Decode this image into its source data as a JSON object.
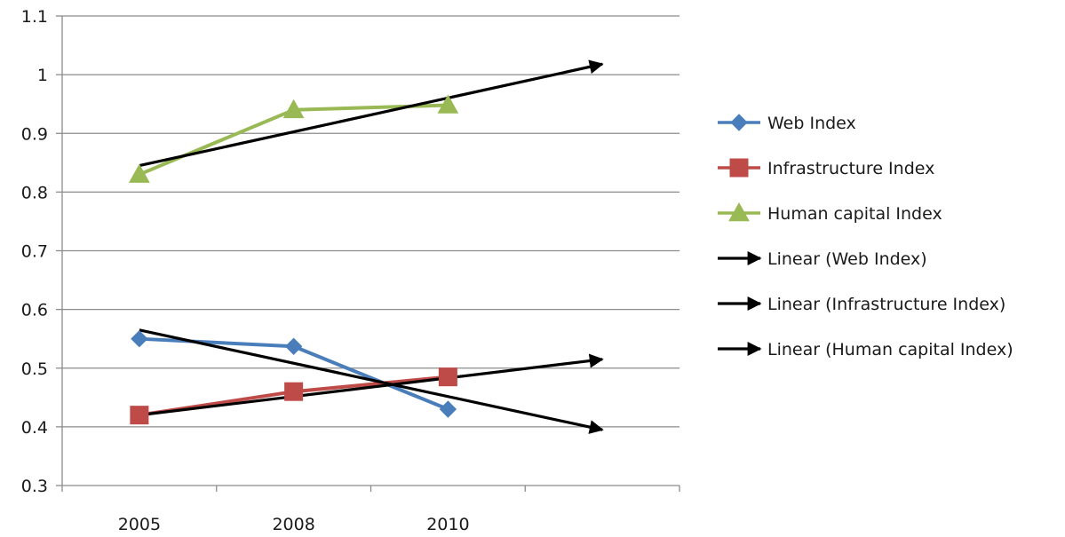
{
  "chart_data": {
    "type": "line",
    "categories": [
      "2005",
      "2008",
      "2010"
    ],
    "ylim": [
      0.3,
      1.1
    ],
    "yticks": [
      "0.3",
      "0.4",
      "0.5",
      "0.6",
      "0.7",
      "0.8",
      "0.9",
      "1",
      "1.1"
    ],
    "grid": true,
    "legend_position": "right",
    "series": [
      {
        "name": "Web Index",
        "values": [
          0.55,
          0.537,
          0.43
        ],
        "color": "#4a7ebb",
        "marker": "diamond"
      },
      {
        "name": "Infrastructure Index",
        "values": [
          0.42,
          0.46,
          0.485
        ],
        "color": "#be4b48",
        "marker": "square"
      },
      {
        "name": "Human capital Index",
        "values": [
          0.83,
          0.94,
          0.948
        ],
        "color": "#98b954",
        "marker": "triangle"
      }
    ],
    "trendlines": [
      {
        "name": "Linear (Web Index)",
        "x": [
          1,
          4
        ],
        "values": [
          0.565,
          0.395
        ],
        "color": "#000000"
      },
      {
        "name": "Linear (Infrastructure Index)",
        "x": [
          1,
          4
        ],
        "values": [
          0.42,
          0.515
        ],
        "color": "#000000"
      },
      {
        "name": "Linear (Human capital Index)",
        "x": [
          1,
          4
        ],
        "values": [
          0.845,
          1.018
        ],
        "color": "#000000"
      }
    ]
  }
}
